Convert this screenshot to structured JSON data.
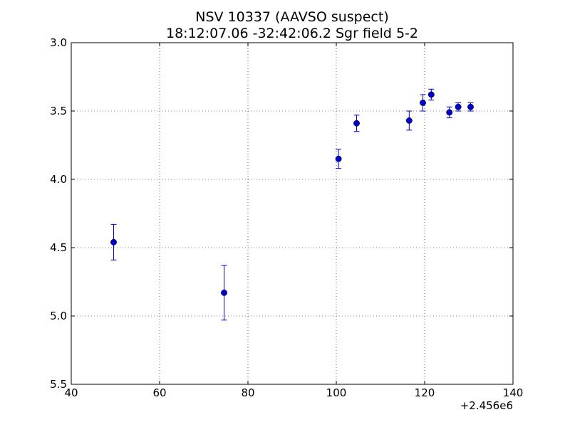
{
  "chart_data": {
    "type": "scatter",
    "title_line1": "NSV 10337  (AAVSO suspect)",
    "title_line2": "18:12:07.06 -32:42:06.2 Sgr field 5-2",
    "xlabel": "",
    "ylabel": "",
    "x_offset_label": "+2.456e6",
    "xlim": [
      40,
      140
    ],
    "ylim": [
      3.0,
      5.5
    ],
    "y_inverted": true,
    "grid": true,
    "x_ticks": [
      40,
      60,
      80,
      100,
      120,
      140
    ],
    "x_tick_labels": [
      "40",
      "60",
      "80",
      "100",
      "120",
      "140"
    ],
    "y_ticks": [
      3.0,
      3.5,
      4.0,
      4.5,
      5.0,
      5.5
    ],
    "y_tick_labels": [
      "3.0",
      "3.5",
      "4.0",
      "4.5",
      "5.0",
      "5.5"
    ],
    "marker_color": "#0000cc",
    "errorbar_color": "#0000cc",
    "points": [
      {
        "x": 49.6,
        "y": 4.46,
        "err": 0.13
      },
      {
        "x": 74.6,
        "y": 4.83,
        "err": 0.2
      },
      {
        "x": 100.5,
        "y": 3.85,
        "err": 0.07
      },
      {
        "x": 104.6,
        "y": 3.59,
        "err": 0.06
      },
      {
        "x": 116.5,
        "y": 3.57,
        "err": 0.07
      },
      {
        "x": 119.6,
        "y": 3.44,
        "err": 0.06
      },
      {
        "x": 121.5,
        "y": 3.38,
        "err": 0.04
      },
      {
        "x": 125.6,
        "y": 3.51,
        "err": 0.04
      },
      {
        "x": 127.6,
        "y": 3.47,
        "err": 0.03
      },
      {
        "x": 130.4,
        "y": 3.47,
        "err": 0.03
      }
    ]
  }
}
